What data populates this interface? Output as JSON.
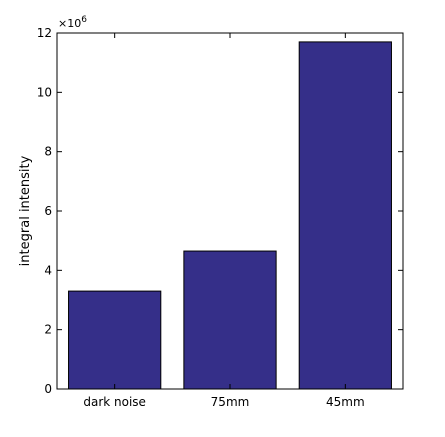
{
  "chart_data": {
    "type": "bar",
    "categories": [
      "dark noise",
      "75mm",
      "45mm"
    ],
    "values": [
      3300000,
      4650000,
      11700000
    ],
    "title": "",
    "xlabel": "",
    "ylabel": "integral intensity",
    "ylim": [
      0,
      12000000
    ],
    "y_ticks": [
      0,
      2000000,
      4000000,
      6000000,
      8000000,
      10000000,
      12000000
    ],
    "y_tick_labels": [
      "0",
      "2",
      "4",
      "6",
      "8",
      "10",
      "12"
    ],
    "y_offset_text": "×10^6",
    "y_offset_base": "×10",
    "y_offset_power": "6",
    "grid": false,
    "bar_color": "#352f89",
    "edge_color": "#000000"
  }
}
